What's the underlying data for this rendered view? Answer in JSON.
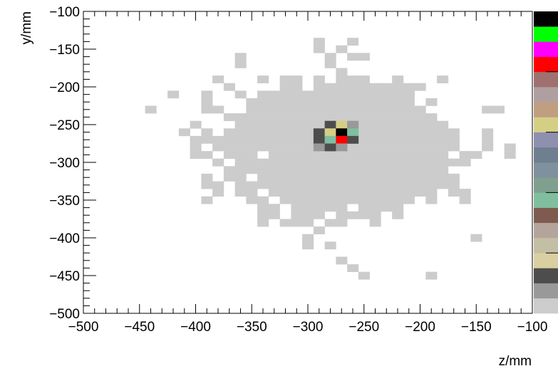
{
  "chart_data": {
    "type": "heatmap",
    "title": "",
    "xlabel": "z/mm",
    "ylabel": "y/mm",
    "xlim": [
      -500,
      -100
    ],
    "ylim": [
      -500,
      -100
    ],
    "bin_width": 10,
    "x_tick_labels": [
      "−500",
      "−450",
      "−400",
      "−350",
      "−300",
      "−250",
      "−200",
      "−150",
      "−100"
    ],
    "y_tick_labels": [
      "−100",
      "−150",
      "−200",
      "−250",
      "−300",
      "−350",
      "−400",
      "−450",
      "−500"
    ],
    "x_tick_values": [
      -500,
      -450,
      -400,
      -350,
      -300,
      -250,
      -200,
      -150,
      -100
    ],
    "y_tick_values": [
      -100,
      -150,
      -200,
      -250,
      -300,
      -350,
      -400,
      -450,
      -500
    ],
    "palette": [
      "#cccccc",
      "#999999",
      "#4d4d4d",
      "#d9cfa0",
      "#c3bfa4",
      "#b4a59c",
      "#7f5b4f",
      "#7fbfa0",
      "#7f9f8f",
      "#7f909f",
      "#6f7f8f",
      "#8f8faf",
      "#d4cf85",
      "#bf9f7f",
      "#b09fa0",
      "#9f7070",
      "#ff0000",
      "#ff00ff",
      "#00ff00",
      "#000000"
    ],
    "background_level": 1,
    "background_rows": [
      {
        "y": -140,
        "ranges": [
          [
            -295,
            -285
          ],
          [
            -265,
            -255
          ]
        ]
      },
      {
        "y": -150,
        "ranges": [
          [
            -295,
            -285
          ],
          [
            -275,
            -265
          ]
        ]
      },
      {
        "y": -160,
        "ranges": [
          [
            -365,
            -355
          ],
          [
            -285,
            -275
          ],
          [
            -265,
            -245
          ]
        ]
      },
      {
        "y": -170,
        "ranges": [
          [
            -365,
            -355
          ],
          [
            -285,
            -275
          ]
        ]
      },
      {
        "y": -180,
        "ranges": [
          [
            -275,
            -265
          ]
        ]
      },
      {
        "y": -190,
        "ranges": [
          [
            -385,
            -375
          ],
          [
            -345,
            -335
          ],
          [
            -325,
            -305
          ],
          [
            -295,
            -285
          ],
          [
            -275,
            -245
          ],
          [
            -225,
            -215
          ],
          [
            -185,
            -175
          ]
        ]
      },
      {
        "y": -200,
        "ranges": [
          [
            -375,
            -365
          ],
          [
            -325,
            -305
          ],
          [
            -295,
            -195
          ]
        ]
      },
      {
        "y": -210,
        "ranges": [
          [
            -425,
            -415
          ],
          [
            -395,
            -385
          ],
          [
            -365,
            -355
          ],
          [
            -345,
            -205
          ]
        ]
      },
      {
        "y": -220,
        "ranges": [
          [
            -395,
            -385
          ],
          [
            -355,
            -205
          ],
          [
            -195,
            -185
          ]
        ]
      },
      {
        "y": -230,
        "ranges": [
          [
            -445,
            -435
          ],
          [
            -395,
            -375
          ],
          [
            -355,
            -195
          ],
          [
            -145,
            -125
          ]
        ]
      },
      {
        "y": -240,
        "ranges": [
          [
            -375,
            -185
          ]
        ]
      },
      {
        "y": -250,
        "ranges": [
          [
            -405,
            -395
          ],
          [
            -365,
            -175
          ]
        ]
      },
      {
        "y": -260,
        "ranges": [
          [
            -415,
            -405
          ],
          [
            -395,
            -385
          ],
          [
            -375,
            -165
          ],
          [
            -145,
            -135
          ]
        ]
      },
      {
        "y": -270,
        "ranges": [
          [
            -405,
            -165
          ],
          [
            -145,
            -135
          ]
        ]
      },
      {
        "y": -280,
        "ranges": [
          [
            -405,
            -395
          ],
          [
            -385,
            -165
          ],
          [
            -145,
            -135
          ],
          [
            -125,
            -115
          ]
        ]
      },
      {
        "y": -290,
        "ranges": [
          [
            -405,
            -385
          ],
          [
            -375,
            -345
          ],
          [
            -335,
            -175
          ],
          [
            -165,
            -145
          ],
          [
            -125,
            -115
          ]
        ]
      },
      {
        "y": -300,
        "ranges": [
          [
            -385,
            -375
          ],
          [
            -365,
            -155
          ]
        ]
      },
      {
        "y": -310,
        "ranges": [
          [
            -375,
            -175
          ]
        ]
      },
      {
        "y": -320,
        "ranges": [
          [
            -395,
            -385
          ],
          [
            -375,
            -355
          ],
          [
            -345,
            -165
          ]
        ]
      },
      {
        "y": -330,
        "ranges": [
          [
            -395,
            -375
          ],
          [
            -365,
            -165
          ]
        ]
      },
      {
        "y": -340,
        "ranges": [
          [
            -385,
            -375
          ],
          [
            -365,
            -345
          ],
          [
            -335,
            -185
          ],
          [
            -175,
            -155
          ]
        ]
      },
      {
        "y": -350,
        "ranges": [
          [
            -395,
            -385
          ],
          [
            -355,
            -335
          ],
          [
            -325,
            -205
          ],
          [
            -195,
            -185
          ],
          [
            -165,
            -155
          ]
        ]
      },
      {
        "y": -360,
        "ranges": [
          [
            -345,
            -325
          ],
          [
            -315,
            -265
          ],
          [
            -255,
            -215
          ]
        ]
      },
      {
        "y": -370,
        "ranges": [
          [
            -345,
            -325
          ],
          [
            -315,
            -285
          ],
          [
            -275,
            -235
          ],
          [
            -225,
            -215
          ]
        ]
      },
      {
        "y": -380,
        "ranges": [
          [
            -345,
            -335
          ],
          [
            -325,
            -295
          ],
          [
            -285,
            -265
          ],
          [
            -245,
            -235
          ]
        ]
      },
      {
        "y": -390,
        "ranges": [
          [
            -295,
            -285
          ]
        ]
      },
      {
        "y": -400,
        "ranges": [
          [
            -305,
            -295
          ],
          [
            -155,
            -145
          ]
        ]
      },
      {
        "y": -410,
        "ranges": [
          [
            -305,
            -295
          ],
          [
            -285,
            -275
          ]
        ]
      },
      {
        "y": -430,
        "ranges": [
          [
            -275,
            -265
          ]
        ]
      },
      {
        "y": -440,
        "ranges": [
          [
            -265,
            -255
          ]
        ]
      },
      {
        "y": -450,
        "ranges": [
          [
            -255,
            -245
          ],
          [
            -195,
            -185
          ]
        ]
      }
    ],
    "core_cells": [
      {
        "z": -280,
        "y": -250,
        "level": 3
      },
      {
        "z": -270,
        "y": -250,
        "level": 13
      },
      {
        "z": -260,
        "y": -250,
        "level": 2
      },
      {
        "z": -290,
        "y": -260,
        "level": 3
      },
      {
        "z": -280,
        "y": -260,
        "level": 13
      },
      {
        "z": -270,
        "y": -260,
        "level": 20
      },
      {
        "z": -260,
        "y": -260,
        "level": 8
      },
      {
        "z": -290,
        "y": -270,
        "level": 3
      },
      {
        "z": -280,
        "y": -270,
        "level": 8
      },
      {
        "z": -270,
        "y": -270,
        "level": 17
      },
      {
        "z": -260,
        "y": -270,
        "level": 3
      },
      {
        "z": -290,
        "y": -280,
        "level": 2
      },
      {
        "z": -280,
        "y": -280,
        "level": 3
      },
      {
        "z": -270,
        "y": -280,
        "level": 2
      }
    ]
  }
}
